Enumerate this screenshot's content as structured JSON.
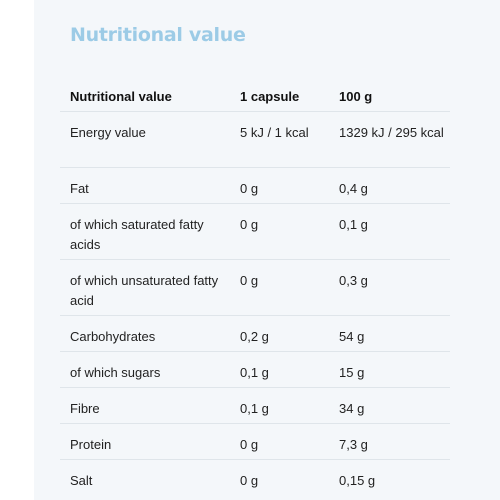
{
  "title": "Nutritional value",
  "table": {
    "headers": [
      "Nutritional value",
      "1 capsule",
      "100 g"
    ],
    "rows": [
      [
        "Energy value",
        "5 kJ / 1 kcal",
        "1329 kJ / 295 kcal"
      ],
      [
        "Fat",
        "0 g",
        "0,4 g"
      ],
      [
        "of which saturated fatty acids",
        "0 g",
        "0,1 g"
      ],
      [
        "of which unsaturated fatty acid",
        "0 g",
        "0,3 g"
      ],
      [
        "Carbohydrates",
        "0,2 g",
        "54 g"
      ],
      [
        "of which sugars",
        "0,1 g",
        "15 g"
      ],
      [
        "Fibre",
        "0,1 g",
        "34 g"
      ],
      [
        "Protein",
        "0 g",
        "7,3 g"
      ],
      [
        "Salt",
        "0 g",
        "0,15 g"
      ]
    ]
  }
}
